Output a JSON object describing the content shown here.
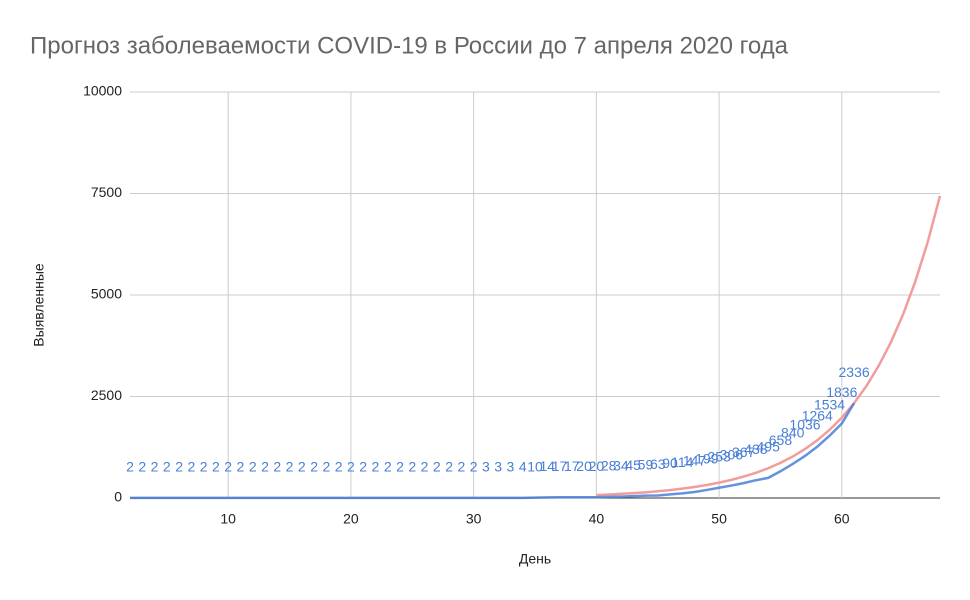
{
  "chart_data": {
    "type": "line",
    "title": "Прогноз заболеваемости COVID-19 в России  до  7 апреля 2020 года",
    "x_label": "День",
    "y_label": "Выявленные",
    "x": [
      2,
      3,
      4,
      5,
      6,
      7,
      8,
      9,
      10,
      11,
      12,
      13,
      14,
      15,
      16,
      17,
      18,
      19,
      20,
      21,
      22,
      23,
      24,
      25,
      26,
      27,
      28,
      29,
      30,
      31,
      32,
      33,
      34,
      35,
      36,
      37,
      38,
      39,
      40,
      41,
      42,
      43,
      44,
      45,
      46,
      47,
      48,
      49,
      50,
      51,
      52,
      53,
      54,
      55,
      56,
      57,
      58,
      59,
      60,
      61,
      62,
      63,
      64,
      65,
      66,
      67,
      68
    ],
    "series": [
      {
        "color": "#4a7fd6",
        "data_labels": true,
        "values": [
          2,
          2,
          2,
          2,
          2,
          2,
          2,
          2,
          2,
          2,
          2,
          2,
          2,
          2,
          2,
          2,
          2,
          2,
          2,
          2,
          2,
          2,
          2,
          2,
          2,
          2,
          2,
          2,
          2,
          3,
          3,
          3,
          4,
          10,
          14,
          17,
          17,
          20,
          20,
          28,
          34,
          45,
          59,
          63,
          90,
          114,
          147,
          199,
          253,
          306,
          367,
          438,
          495,
          658,
          840,
          1036,
          1264,
          1534,
          1836,
          2336,
          null,
          null,
          null,
          null,
          null,
          null,
          null
        ]
      },
      {
        "color": "#f29c9c",
        "data_labels": false,
        "values": [
          null,
          null,
          null,
          null,
          null,
          null,
          null,
          null,
          null,
          null,
          null,
          null,
          null,
          null,
          null,
          null,
          null,
          null,
          null,
          null,
          null,
          null,
          null,
          null,
          null,
          null,
          null,
          null,
          null,
          null,
          null,
          null,
          null,
          null,
          null,
          null,
          null,
          null,
          72,
          85,
          101,
          119,
          140,
          165,
          195,
          230,
          272,
          320,
          378,
          446,
          527,
          621,
          733,
          865,
          1021,
          1205,
          1422,
          1678,
          1980,
          2336,
          2756,
          3253,
          3838,
          4529,
          5344,
          6306,
          7441
        ]
      }
    ],
    "xlim": [
      2,
      68
    ],
    "xticks": [
      10,
      20,
      30,
      40,
      50,
      60
    ],
    "ylim": [
      0,
      10000
    ],
    "yticks": [
      0,
      2500,
      5000,
      7500,
      10000
    ],
    "grid": true
  }
}
